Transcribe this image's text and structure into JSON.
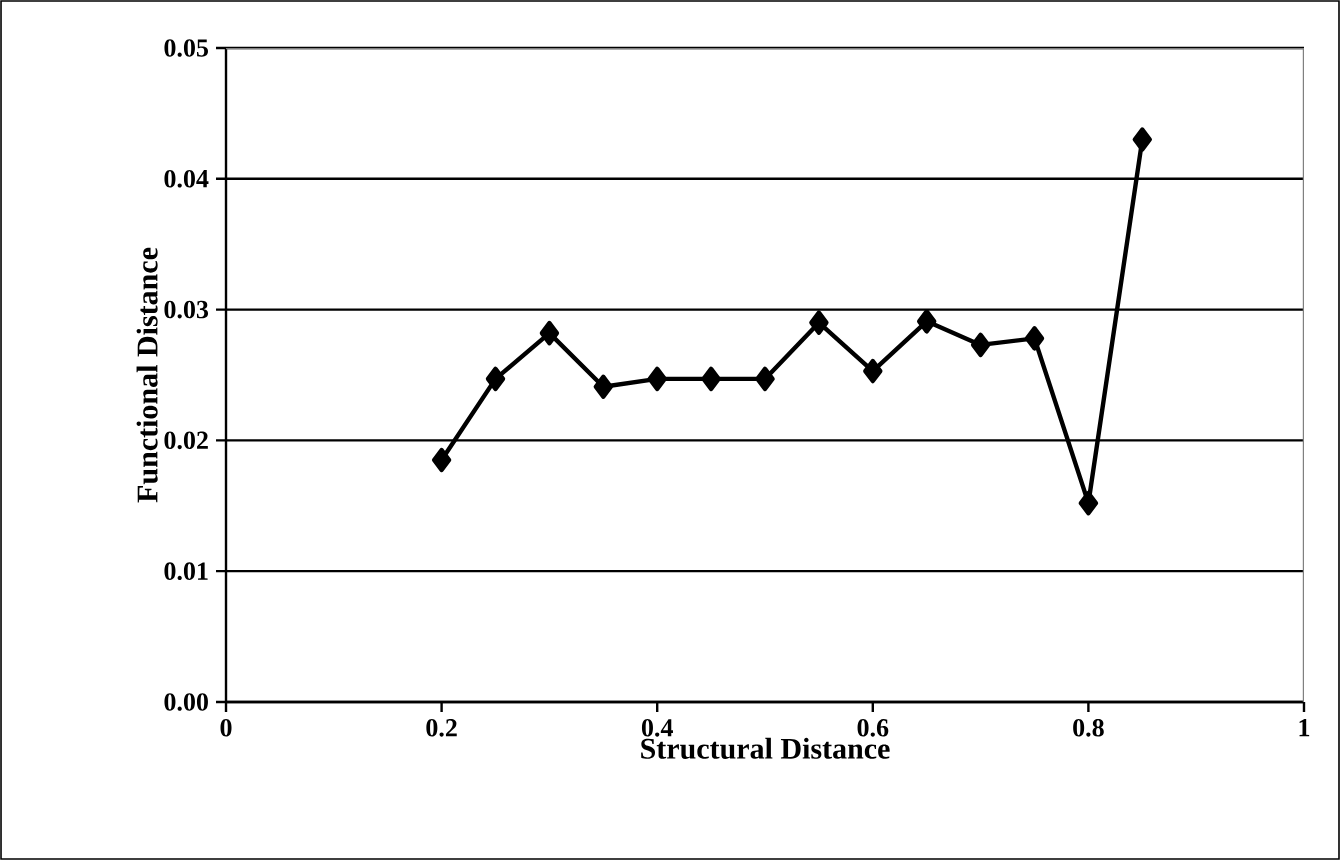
{
  "chart_data": {
    "type": "line",
    "xlabel": "Structural Distance",
    "ylabel": "Functional Distance",
    "x": [
      0.2,
      0.25,
      0.3,
      0.35,
      0.4,
      0.45,
      0.5,
      0.55,
      0.6,
      0.65,
      0.7,
      0.75,
      0.8,
      0.85
    ],
    "series": [
      {
        "color": "#000000",
        "values": [
          0.0185,
          0.0247,
          0.0282,
          0.0241,
          0.0247,
          0.0247,
          0.0247,
          0.029,
          0.0253,
          0.0291,
          0.0273,
          0.0278,
          0.0152,
          0.043
        ]
      }
    ],
    "xlim": [
      0,
      1
    ],
    "xticks": [
      0,
      0.2,
      0.4,
      0.6,
      0.8,
      1
    ],
    "ylim": [
      0,
      0.05
    ],
    "yticks": [
      {
        "value": 0,
        "label": "0.00"
      },
      0.01,
      0.02,
      0.03,
      0.04,
      0.05
    ],
    "grid": "y",
    "marker": "diamond",
    "line_style": "solid"
  }
}
